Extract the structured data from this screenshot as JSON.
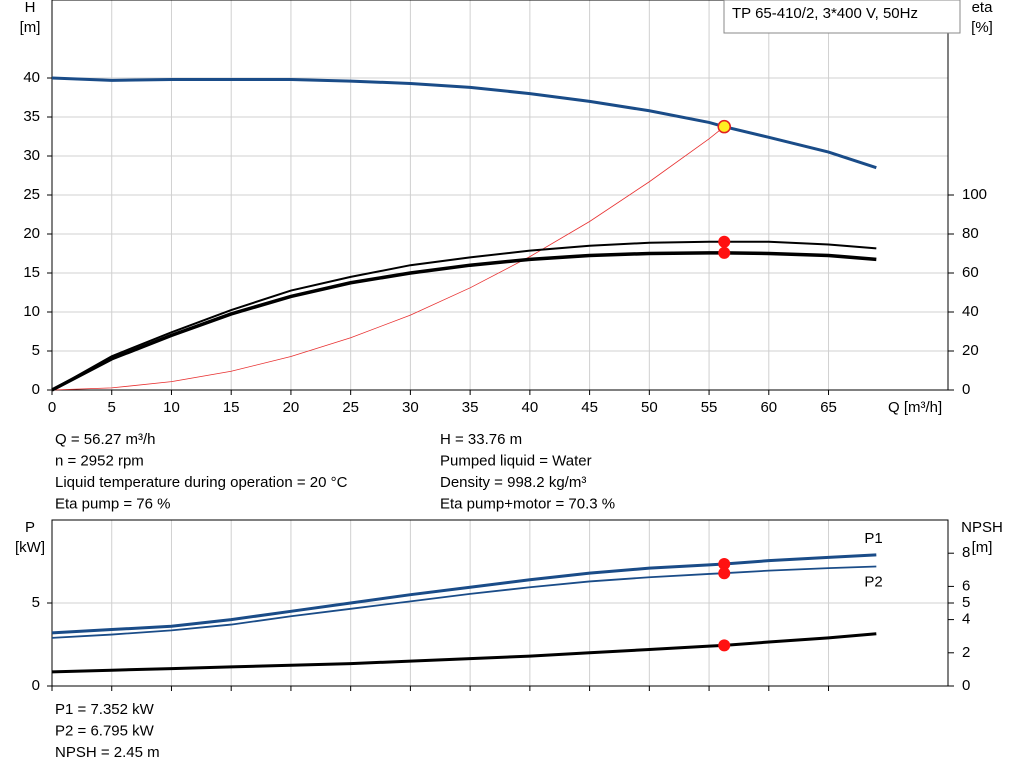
{
  "chart_data": [
    {
      "type": "line",
      "title": "TP 65-410/2, 3*400 V, 50Hz",
      "ylabel": [
        "H",
        "[m]"
      ],
      "y2label": [
        "eta",
        "[%]"
      ],
      "xlabel": "Q [m³/h]",
      "x": [
        0,
        5,
        10,
        15,
        20,
        25,
        30,
        35,
        40,
        45,
        50,
        55,
        56.27,
        60,
        65,
        69
      ],
      "xlim": [
        0,
        75
      ],
      "xticks": [
        0,
        5,
        10,
        15,
        20,
        25,
        30,
        35,
        40,
        45,
        50,
        55,
        60,
        65
      ],
      "show_xtick_labels": true,
      "ylim": [
        0,
        50
      ],
      "yticks": [
        0,
        5,
        10,
        15,
        20,
        25,
        30,
        35,
        40
      ],
      "y2lim": [
        0,
        200
      ],
      "y2ticks": [
        0,
        20,
        40,
        60,
        80,
        100
      ],
      "grid": true,
      "series": [
        {
          "color": "#1a4c88",
          "width": 3,
          "values": [
            40,
            39.7,
            39.8,
            39.8,
            39.8,
            39.6,
            39.3,
            38.8,
            38.0,
            37.0,
            35.8,
            34.3,
            33.76,
            32.4,
            30.5,
            28.5
          ]
        },
        {
          "color": "#e83030",
          "width": 0.8,
          "values": [
            0,
            0.27,
            1.07,
            2.4,
            4.3,
            6.7,
            9.6,
            13.1,
            17.1,
            21.6,
            26.7,
            32.2,
            33.76,
            null,
            null,
            null
          ]
        },
        {
          "color": "#000000",
          "width": 2,
          "axis": "y2",
          "values": [
            0,
            17.3,
            29.6,
            41,
            51,
            58,
            64,
            68,
            71.5,
            74,
            75.5,
            76,
            76,
            76,
            74.6,
            72.6
          ]
        },
        {
          "color": "#000000",
          "width": 3.5,
          "axis": "y2",
          "values": [
            0,
            16,
            28,
            39,
            48,
            55,
            60,
            64,
            67,
            69,
            70,
            70.3,
            70.3,
            70,
            69,
            67
          ]
        }
      ],
      "duty_points": [
        {
          "x": 56.27,
          "y": 33.76,
          "color": "#ffee22"
        },
        {
          "x": 56.27,
          "y": 76,
          "axis": "y2",
          "color": "#ff1111"
        },
        {
          "x": 56.27,
          "y": 70.3,
          "axis": "y2",
          "color": "#ff1111"
        }
      ],
      "info": [
        [
          "Q = 56.27 m³/h",
          "H = 33.76 m"
        ],
        [
          "n = 2952 rpm",
          "Pumped liquid = Water"
        ],
        [
          "Liquid temperature during operation = 20 °C",
          "Density = 998.2 kg/m³"
        ],
        [
          "Eta pump = 76 %",
          "Eta pump+motor = 70.3 %"
        ]
      ]
    },
    {
      "type": "line",
      "ylabel": [
        "P",
        "[kW]"
      ],
      "y2label": [
        "NPSH",
        "[m]"
      ],
      "x": [
        0,
        5,
        10,
        15,
        20,
        25,
        30,
        35,
        40,
        45,
        50,
        55,
        56.27,
        60,
        65,
        69
      ],
      "xlim": [
        0,
        75
      ],
      "xticks": [
        0,
        5,
        10,
        15,
        20,
        25,
        30,
        35,
        40,
        45,
        50,
        55,
        60,
        65
      ],
      "show_xtick_labels": false,
      "ylim": [
        0,
        10
      ],
      "yticks": [
        0,
        5
      ],
      "y2lim": [
        0,
        10
      ],
      "y2ticks": [
        0,
        2,
        4,
        5,
        6,
        8
      ],
      "grid": true,
      "series": [
        {
          "name": "P1",
          "color": "#1a4c88",
          "width": 3,
          "values": [
            3.2,
            3.4,
            3.6,
            4.0,
            4.5,
            5.0,
            5.5,
            5.95,
            6.4,
            6.8,
            7.1,
            7.3,
            7.352,
            7.55,
            7.75,
            7.9
          ]
        },
        {
          "name": "P2",
          "color": "#1a4c88",
          "width": 1.8,
          "values": [
            2.9,
            3.1,
            3.35,
            3.7,
            4.2,
            4.65,
            5.1,
            5.55,
            5.95,
            6.3,
            6.55,
            6.75,
            6.795,
            6.95,
            7.1,
            7.2
          ]
        },
        {
          "color": "#000000",
          "width": 3,
          "axis": "y2",
          "values": [
            0.85,
            0.95,
            1.05,
            1.15,
            1.25,
            1.35,
            1.5,
            1.65,
            1.8,
            2.0,
            2.2,
            2.4,
            2.45,
            2.65,
            2.9,
            3.15
          ]
        }
      ],
      "duty_points": [
        {
          "x": 56.27,
          "y": 7.352,
          "color": "#ff1111"
        },
        {
          "x": 56.27,
          "y": 6.795,
          "color": "#ff1111"
        },
        {
          "x": 56.27,
          "y": 2.45,
          "axis": "y2",
          "color": "#ff1111"
        }
      ],
      "info": [
        [
          "P1 = 7.352 kW"
        ],
        [
          "P2 = 6.795 kW"
        ],
        [
          "NPSH = 2.45 m"
        ]
      ]
    }
  ]
}
